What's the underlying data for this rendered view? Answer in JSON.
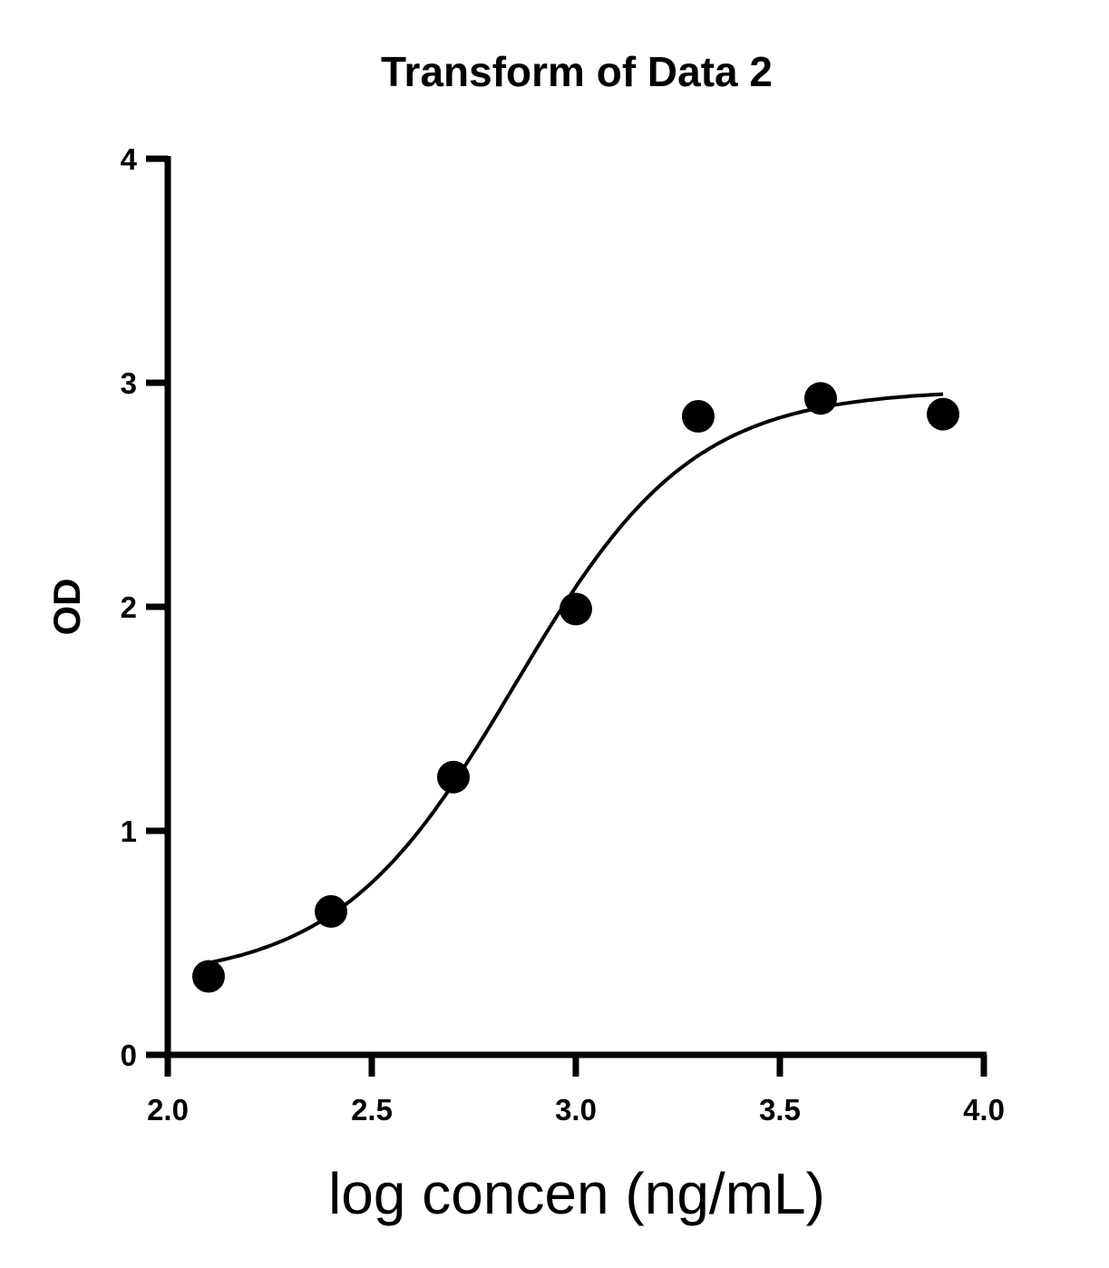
{
  "chart_data": {
    "type": "scatter",
    "title": "Transform of Data 2",
    "xlabel": "log concen (ng/mL)",
    "ylabel": "OD",
    "xlim": [
      2.0,
      4.0
    ],
    "ylim": [
      0,
      4
    ],
    "xticks": [
      "2.0",
      "2.5",
      "3.0",
      "3.5",
      "4.0"
    ],
    "yticks": [
      "0",
      "1",
      "2",
      "3",
      "4"
    ],
    "grid": false,
    "x": [
      2.1,
      2.4,
      2.7,
      3.0,
      3.3,
      3.6,
      3.9
    ],
    "y": [
      0.35,
      0.64,
      1.24,
      1.99,
      2.85,
      2.93,
      2.86
    ],
    "fit": {
      "model": "4PL sigmoid",
      "bottom": 0.33,
      "top": 2.97,
      "logEC50": 2.85,
      "hill": 2.0,
      "x_range": [
        2.1,
        3.9
      ]
    },
    "colors": {
      "points": "#000000",
      "line": "#000000"
    }
  }
}
